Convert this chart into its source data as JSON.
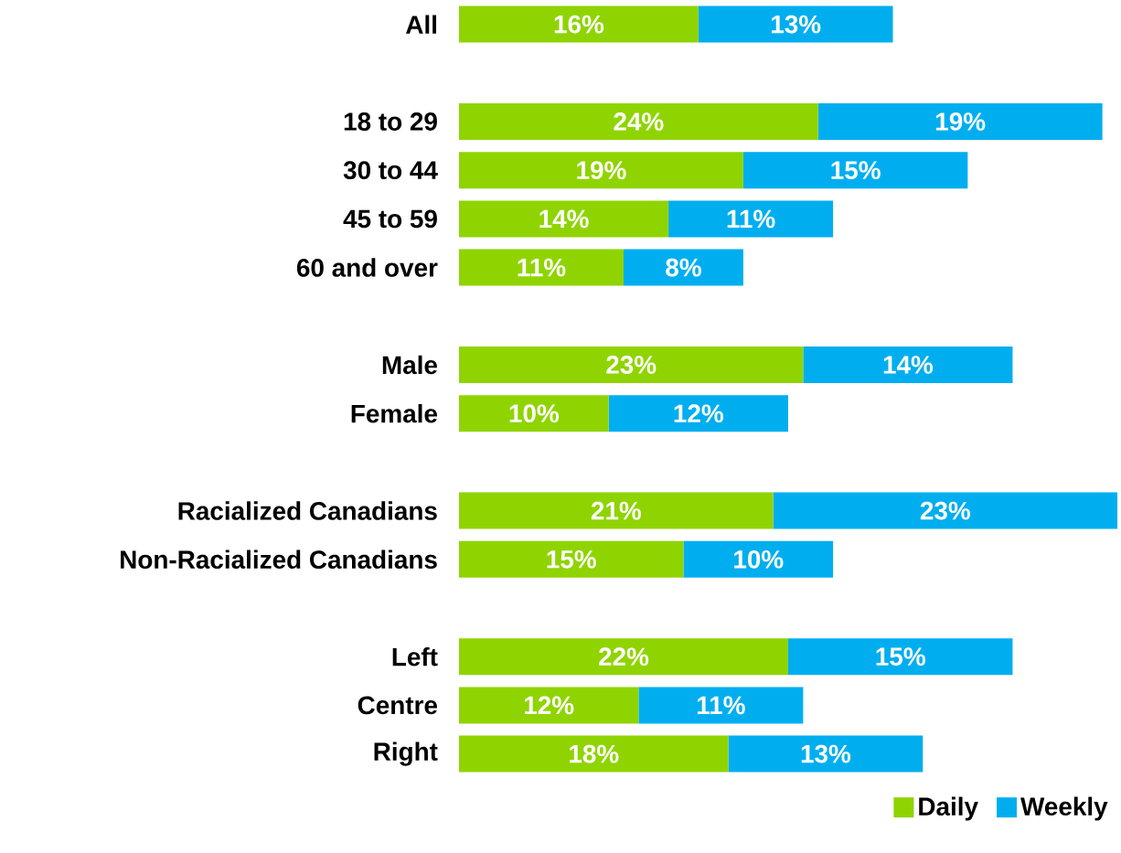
{
  "chart_data": {
    "type": "bar",
    "orientation": "horizontal",
    "stacked": true,
    "legend": "bottom right",
    "categories": [
      "All",
      null,
      "18 to 29",
      "30 to 44",
      "45 to 59",
      "60 and over",
      null,
      "Male",
      "Female",
      null,
      "Racialized Canadians",
      "Non-Racialized Canadians",
      null,
      "Left",
      "Centre",
      "Right"
    ],
    "series": [
      {
        "name": "Daily",
        "color": "#8fd400",
        "values": [
          16,
          null,
          24,
          19,
          14,
          11,
          null,
          23,
          10,
          null,
          21,
          15,
          null,
          22,
          12,
          18
        ],
        "value_labels": [
          "16%",
          null,
          "24%",
          "19%",
          "14%",
          "11%",
          null,
          "23%",
          "10%",
          null,
          "21%",
          "15%",
          null,
          "22%",
          "12%",
          "18%"
        ]
      },
      {
        "name": "Weekly",
        "color": "#00aeef",
        "values": [
          13,
          null,
          19,
          15,
          11,
          8,
          null,
          14,
          12,
          null,
          23,
          10,
          null,
          15,
          11,
          13
        ],
        "value_labels": [
          "13%",
          null,
          "19%",
          "15%",
          "11%",
          "8%",
          null,
          "14%",
          "12%",
          null,
          "23%",
          "10%",
          null,
          "15%",
          "11%",
          "13%"
        ]
      }
    ]
  }
}
